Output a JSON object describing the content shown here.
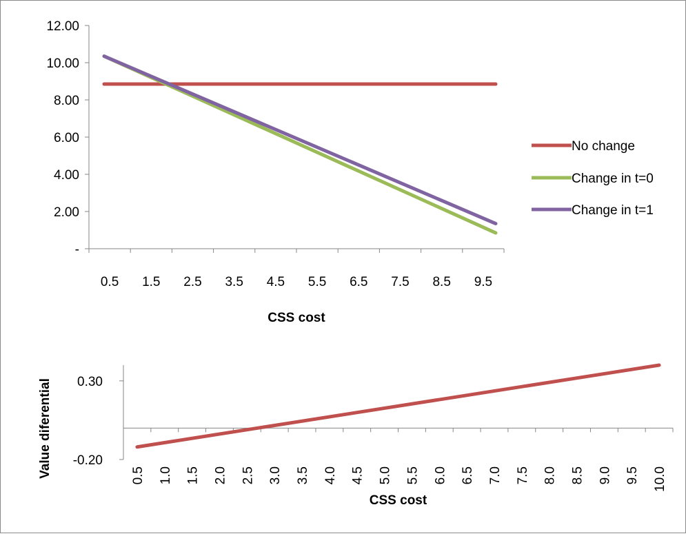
{
  "chart_data": [
    {
      "type": "line",
      "xlabel": "CSS cost",
      "ylabel": "",
      "x_ticks": [
        "0.5",
        "1.5",
        "2.5",
        "3.5",
        "4.5",
        "5.5",
        "6.5",
        "7.5",
        "8.5",
        "9.5"
      ],
      "y_ticks": [
        "12.00",
        "10.00",
        "8.00",
        "6.00",
        "4.00",
        "2.00",
        "-"
      ],
      "ylim": [
        0,
        12
      ],
      "legend_position": "right",
      "series": [
        {
          "name": "No change",
          "color": "#c0504d",
          "x": [
            0.5,
            10.0
          ],
          "y": [
            8.85,
            8.85
          ]
        },
        {
          "name": "Change in t=0",
          "color": "#9bbb59",
          "x": [
            0.5,
            10.0
          ],
          "y": [
            10.35,
            0.85
          ]
        },
        {
          "name": "Change in t=1",
          "color": "#8064a2",
          "x": [
            0.5,
            10.0
          ],
          "y": [
            10.35,
            1.35
          ]
        }
      ]
    },
    {
      "type": "line",
      "xlabel": "CSS cost",
      "ylabel": "Value diferential",
      "x_ticks": [
        "0.5",
        "1.0",
        "1.5",
        "2.0",
        "2.5",
        "3.0",
        "3.5",
        "4.0",
        "4.5",
        "5.0",
        "5.5",
        "6.0",
        "6.5",
        "7.0",
        "7.5",
        "8.0",
        "8.5",
        "9.0",
        "9.5",
        "10.0"
      ],
      "y_ticks": [
        "0.30",
        "-0.20"
      ],
      "ylim": [
        -0.2,
        0.4
      ],
      "series": [
        {
          "color": "#c0504d",
          "x": [
            0.5,
            10.0
          ],
          "y": [
            -0.12,
            0.4
          ]
        }
      ]
    }
  ]
}
